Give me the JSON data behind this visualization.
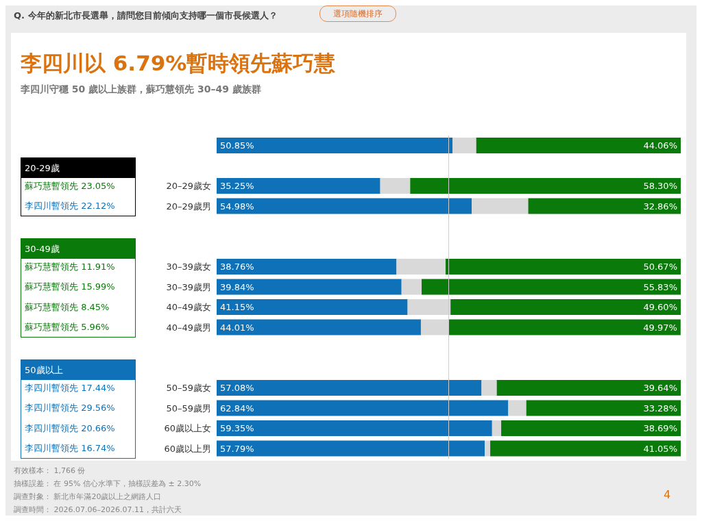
{
  "chart_data": {
    "type": "bar",
    "orientation": "horizontal",
    "stacked": true,
    "title": "李四川以 6.79%暫時領先蘇巧慧",
    "subtitle": "李四川守穩 50 歲以上族群，蘇巧慧領先 30–49 歲族群",
    "categories": [
      null,
      null,
      "20–29歲女",
      "20–29歲男",
      null,
      null,
      "30–39歲女",
      "30–39歲男",
      "40–49歲女",
      "40–49歲男",
      null,
      null,
      "50–59歲女",
      "50–59歲男",
      "60歲以上女",
      "60歲以上男"
    ],
    "series": [
      {
        "color": "#0f72b8",
        "values": [
          50.85,
          null,
          35.25,
          54.98,
          null,
          null,
          38.76,
          39.84,
          41.15,
          44.01,
          null,
          null,
          57.08,
          62.84,
          59.35,
          57.79
        ],
        "value_labels": [
          "50.85%",
          null,
          "35.25%",
          "54.98%",
          null,
          null,
          "38.76%",
          "39.84%",
          "41.15%",
          "44.01%",
          null,
          null,
          "57.08%",
          "62.84%",
          "59.35%",
          "57.79%"
        ]
      },
      {
        "color": "#d9d9d9",
        "values": [
          5.09,
          null,
          6.45,
          12.16,
          null,
          null,
          10.57,
          4.33,
          9.25,
          5.99,
          null,
          null,
          3.28,
          3.88,
          1.96,
          1.16
        ]
      },
      {
        "color": "#0a7a0a",
        "values": [
          44.06,
          null,
          58.3,
          32.86,
          null,
          null,
          50.67,
          55.83,
          49.6,
          49.97,
          null,
          null,
          39.64,
          33.28,
          38.69,
          41.05
        ],
        "value_labels": [
          "44.06%",
          null,
          "58.30%",
          "32.86%",
          null,
          null,
          "50.67%",
          "55.83%",
          "49.60%",
          "49.97%",
          null,
          null,
          "39.64%",
          "33.28%",
          "38.69%",
          "41.05%"
        ]
      }
    ],
    "xlim": [
      0,
      100
    ],
    "tick_labels": "y",
    "ref_lines": [
      {
        "axis": "x",
        "value": 50,
        "color": "#cccccc"
      }
    ],
    "annotations": [
      "Q. 今年的新北市長選舉，請問您目前傾向支持哪一個市長候選人？",
      "選項隨機排序",
      "20-29歲",
      "30-49歲",
      "50歲以上",
      "蘇巧慧暫領先 23.05%",
      "李四川暫領先 22.12%",
      "蘇巧慧暫領先 11.91%",
      "蘇巧慧暫領先 15.99%",
      "蘇巧慧暫領先 8.45%",
      "蘇巧慧暫領先 5.96%",
      "李四川暫領先 17.44%",
      "李四川暫領先 29.56%",
      "李四川暫領先 20.66%",
      "李四川暫領先 16.74%",
      "有效樣本： 1,766 份",
      "抽樣誤差： 在 95% 信心水準下，抽樣誤差為 ± 2.30%",
      "調查對象： 新北市年滿20歲以上之網路人口",
      "調查時間： 2026.07.06–2026.07.11，共計六天",
      "4"
    ]
  }
}
